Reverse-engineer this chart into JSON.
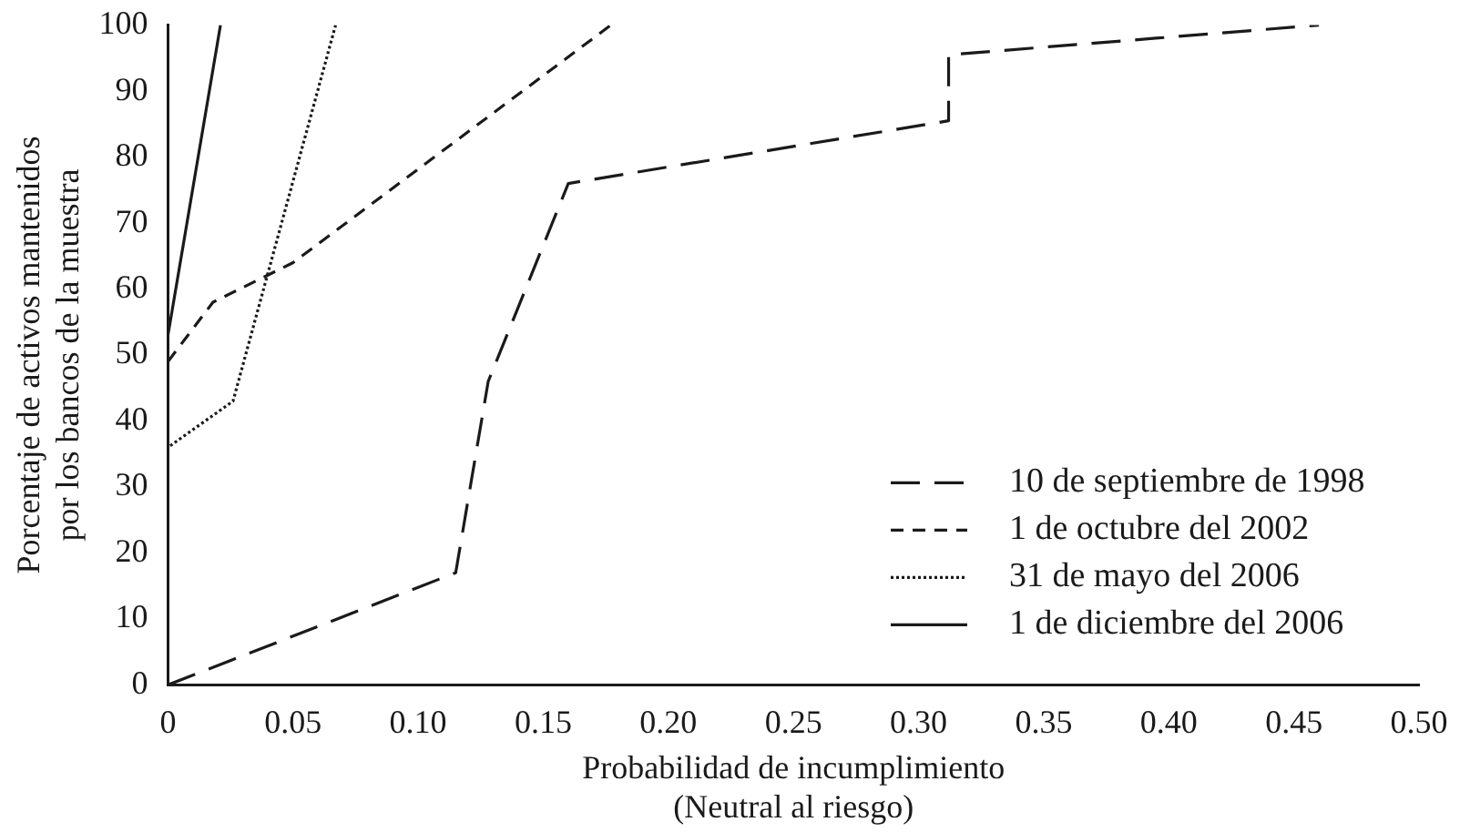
{
  "chart_data": {
    "type": "line",
    "xlabel": "Probabilidad de incumplimiento\n(Neutral al riesgo)",
    "ylabel": "Porcentaje de activos mantenidos\npor los bancos de la muestra",
    "series": [
      {
        "name": "10 de septiembre de 1998",
        "color": "#1a1a1a",
        "line_style": "dashed",
        "x": [
          0,
          0.115,
          0.128,
          0.16,
          0.312,
          0.312,
          0.46
        ],
        "values": [
          0,
          17,
          46,
          76,
          85.5,
          95.5,
          100
        ]
      },
      {
        "name": "1 de octubre del 2002",
        "color": "#1a1a1a",
        "line_style": "dashed",
        "x": [
          0,
          0.018,
          0.05,
          0.177
        ],
        "values": [
          49,
          58,
          64,
          100
        ]
      },
      {
        "name": "31 de mayo del 2006",
        "color": "#1a1a1a",
        "line_style": "dotted",
        "x": [
          0,
          0,
          0.026,
          0.067
        ],
        "values": [
          0,
          36,
          43,
          100
        ]
      },
      {
        "name": "1 de diciembre del 2006",
        "color": "#1a1a1a",
        "line_style": "solid",
        "x": [
          0,
          0,
          0.021
        ],
        "values": [
          0,
          53,
          100
        ]
      }
    ],
    "xlim": [
      0,
      0.5
    ],
    "xticks": [
      0,
      {
        "value": 0.05,
        "label": "0.05"
      },
      {
        "value": 0.1,
        "label": "0.10"
      },
      {
        "value": 0.15,
        "label": "0.15"
      },
      {
        "value": 0.2,
        "label": "0.20"
      },
      {
        "value": 0.25,
        "label": "0.25"
      },
      {
        "value": 0.3,
        "label": "0.30"
      },
      {
        "value": 0.35,
        "label": "0.35"
      },
      {
        "value": 0.4,
        "label": "0.40"
      },
      {
        "value": 0.45,
        "label": "0.45"
      },
      {
        "value": 0.5,
        "label": "0.50"
      }
    ],
    "ylim": [
      0,
      100
    ],
    "yticks": [
      0,
      10,
      20,
      30,
      40,
      50,
      60,
      70,
      80,
      90,
      100
    ],
    "legend": "bottom right",
    "marker": "none",
    "grid": false
  }
}
